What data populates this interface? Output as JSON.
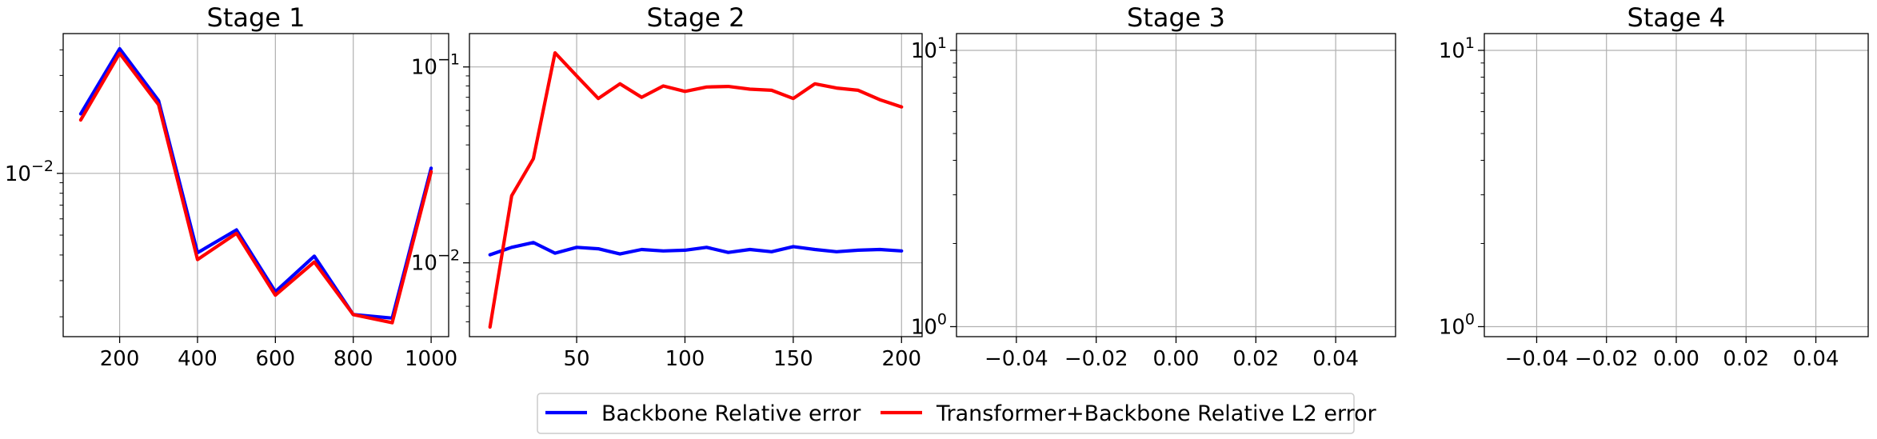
{
  "legend": {
    "items": [
      {
        "label": "Backbone Relative error",
        "color": "#0000ff"
      },
      {
        "label": "Transformer+Backbone Relative L2 error",
        "color": "#ff0000"
      }
    ],
    "placement": "bottom-center"
  },
  "chart_data": [
    {
      "type": "line",
      "title": "Stage 1",
      "xlabel": "",
      "ylabel": "",
      "y_scale": "log",
      "xlim": [
        55,
        1045
      ],
      "ylim": [
        0.0016,
        0.048
      ],
      "xticks": [
        200,
        400,
        600,
        800,
        1000
      ],
      "xtick_labels": [
        "200",
        "400",
        "600",
        "800",
        "1000"
      ],
      "yticks": [
        0.01
      ],
      "ytick_labels": [
        "10⁻²"
      ],
      "grid": true,
      "x": [
        100,
        200,
        300,
        400,
        500,
        600,
        700,
        800,
        900,
        1000
      ],
      "series": [
        {
          "name": "Backbone Relative error",
          "color": "#0000ff",
          "values": [
            0.0195,
            0.0405,
            0.0226,
            0.0041,
            0.0053,
            0.00265,
            0.00395,
            0.00205,
            0.00197,
            0.0106
          ]
        },
        {
          "name": "Transformer+Backbone Relative L2 error",
          "color": "#ff0000",
          "values": [
            0.0182,
            0.0385,
            0.0216,
            0.0038,
            0.0051,
            0.00255,
            0.0037,
            0.00205,
            0.00187,
            0.0102
          ]
        }
      ]
    },
    {
      "type": "line",
      "title": "Stage 2",
      "xlabel": "",
      "ylabel": "",
      "y_scale": "log",
      "xlim": [
        0.5,
        209.5
      ],
      "ylim": [
        0.0042,
        0.148
      ],
      "xticks": [
        50,
        100,
        150,
        200
      ],
      "xtick_labels": [
        "50",
        "100",
        "150",
        "200"
      ],
      "yticks": [
        0.01,
        0.1
      ],
      "ytick_labels": [
        "10⁻²",
        "10⁻¹"
      ],
      "grid": true,
      "x": [
        10,
        20,
        30,
        40,
        50,
        60,
        70,
        80,
        90,
        100,
        110,
        120,
        130,
        140,
        150,
        160,
        170,
        180,
        190,
        200
      ],
      "series": [
        {
          "name": "Backbone Relative error",
          "color": "#0000ff",
          "values": [
            0.011,
            0.012,
            0.0127,
            0.0112,
            0.012,
            0.0118,
            0.0111,
            0.0117,
            0.0115,
            0.0116,
            0.012,
            0.0113,
            0.0117,
            0.0114,
            0.0121,
            0.0117,
            0.0114,
            0.0116,
            0.0117,
            0.0115
          ]
        },
        {
          "name": "Transformer+Backbone Relative L2 error",
          "color": "#ff0000",
          "values": [
            0.0047,
            0.022,
            0.034,
            0.118,
            0.09,
            0.069,
            0.082,
            0.07,
            0.08,
            0.075,
            0.079,
            0.0795,
            0.077,
            0.076,
            0.069,
            0.082,
            0.078,
            0.076,
            0.068,
            0.0625
          ]
        }
      ]
    },
    {
      "type": "line",
      "title": "Stage 3",
      "xlabel": "",
      "ylabel": "",
      "y_scale": "log",
      "xlim": [
        -0.055,
        0.055
      ],
      "ylim": [
        0.92,
        11.5
      ],
      "xticks": [
        -0.04,
        -0.02,
        0.0,
        0.02,
        0.04
      ],
      "xtick_labels": [
        "−0.04",
        "−0.02",
        "0.00",
        "0.02",
        "0.04"
      ],
      "yticks": [
        1,
        10
      ],
      "ytick_labels": [
        "10⁰",
        "10¹"
      ],
      "grid": true,
      "x": [],
      "series": []
    },
    {
      "type": "line",
      "title": "Stage 4",
      "xlabel": "",
      "ylabel": "",
      "y_scale": "log",
      "xlim": [
        -0.055,
        0.055
      ],
      "ylim": [
        0.92,
        11.5
      ],
      "xticks": [
        -0.04,
        -0.02,
        0.0,
        0.02,
        0.04
      ],
      "xtick_labels": [
        "−0.04",
        "−0.02",
        "0.00",
        "0.02",
        "0.04"
      ],
      "yticks": [
        1,
        10
      ],
      "ytick_labels": [
        "10⁰",
        "10¹"
      ],
      "grid": true,
      "x": [],
      "series": []
    }
  ]
}
